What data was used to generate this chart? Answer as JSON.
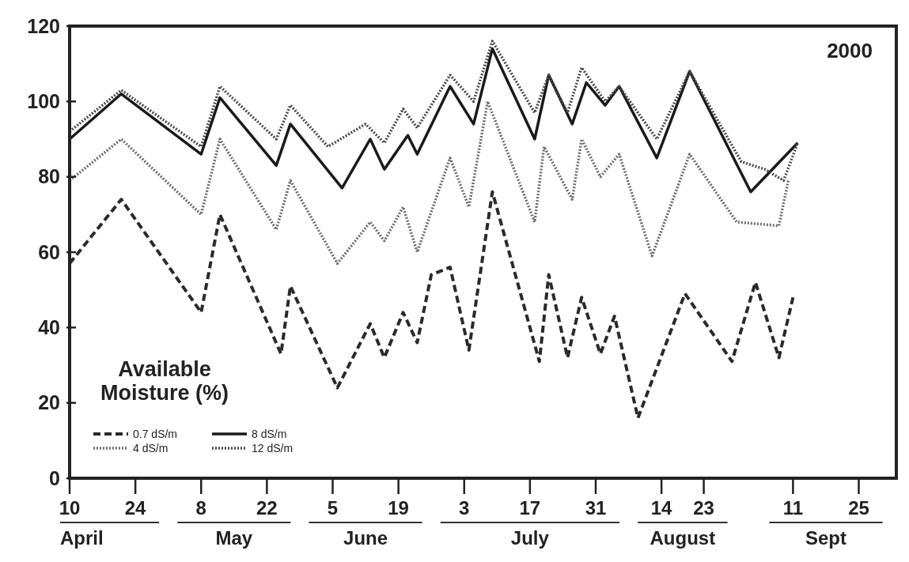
{
  "chart_data": {
    "type": "line",
    "ylabel": "Available Moisture (%)",
    "xlim": [
      "--04-10",
      "--10-03"
    ],
    "ylim": [
      0,
      120
    ],
    "yticks": [
      0,
      20,
      40,
      60,
      80,
      100,
      120
    ],
    "xticks": [
      {
        "value": "--04-10",
        "label": "10"
      },
      {
        "value": "--04-24",
        "label": "24"
      },
      {
        "value": "--05-08",
        "label": "8"
      },
      {
        "value": "--05-22",
        "label": "22"
      },
      {
        "value": "--06-05",
        "label": "5"
      },
      {
        "value": "--06-19",
        "label": "19"
      },
      {
        "value": "--07-03",
        "label": "3"
      },
      {
        "value": "--07-17",
        "label": "17"
      },
      {
        "value": "--07-31",
        "label": "31"
      },
      {
        "value": "--08-14",
        "label": "14"
      },
      {
        "value": "--08-23",
        "label": "23"
      },
      {
        "value": "--09-11",
        "label": "11"
      },
      {
        "value": "--09-25",
        "label": "25"
      }
    ],
    "annotations": [
      "2000",
      "April",
      "May",
      "June",
      "July",
      "August",
      "Sept"
    ],
    "grid": false,
    "legend": "bottom left",
    "marker": "none",
    "series": [
      {
        "name": "0.7 dS/m",
        "color": "#2a2a2a",
        "line_style": "dashed",
        "x": [
          "--04-10",
          "--04-21",
          "--05-08",
          "--05-12",
          "--05-25",
          "--05-27",
          "--06-06",
          "--06-13",
          "--06-16",
          "--06-20",
          "--06-23",
          "--06-26",
          "--06-30",
          "--07-04",
          "--07-09",
          "--07-19",
          "--07-21",
          "--07-25",
          "--07-28",
          "--08-01",
          "--08-04",
          "--08-09",
          "--08-19",
          "--08-29",
          "--09-03",
          "--09-08",
          "--09-11"
        ],
        "values": [
          57,
          74,
          44,
          70,
          33,
          51,
          24,
          41,
          32,
          44,
          36,
          54,
          56,
          34,
          76,
          31,
          54,
          32,
          48,
          33,
          43,
          16,
          49,
          31,
          52,
          32,
          48
        ]
      },
      {
        "name": "8 dS/m",
        "color": "#1a1a1a",
        "line_style": "solid",
        "x": [
          "--04-10",
          "--04-21",
          "--05-08",
          "--05-12",
          "--05-24",
          "--05-27",
          "--06-07",
          "--06-13",
          "--06-16",
          "--06-21",
          "--06-23",
          "--06-30",
          "--07-05",
          "--07-09",
          "--07-18",
          "--07-21",
          "--07-26",
          "--07-29",
          "--08-02",
          "--08-05",
          "--08-13",
          "--08-20",
          "--09-02",
          "--09-12"
        ],
        "values": [
          90,
          102,
          86,
          101,
          83,
          94,
          77,
          90,
          82,
          91,
          86,
          104,
          94,
          114,
          90,
          107,
          94,
          105,
          99,
          104,
          85,
          108,
          76,
          89
        ]
      },
      {
        "name": "4 dS/m",
        "color": "#6e6e6e",
        "line_style": "dotted",
        "x": [
          "--04-10",
          "--04-21",
          "--05-08",
          "--05-12",
          "--05-24",
          "--05-27",
          "--06-06",
          "--06-13",
          "--06-16",
          "--06-20",
          "--06-23",
          "--06-30",
          "--07-04",
          "--07-08",
          "--07-18",
          "--07-20",
          "--07-26",
          "--07-28",
          "--08-01",
          "--08-05",
          "--08-12",
          "--08-20",
          "--08-30",
          "--09-08",
          "--09-10"
        ],
        "values": [
          79,
          90,
          70,
          90,
          66,
          79,
          57,
          68,
          63,
          72,
          60,
          85,
          72,
          100,
          68,
          88,
          74,
          90,
          80,
          86,
          59,
          86,
          68,
          67,
          79
        ]
      },
      {
        "name": "12 dS/m",
        "color": "#4a4a4a",
        "line_style": "dotted",
        "x": [
          "--04-10",
          "--04-21",
          "--05-08",
          "--05-12",
          "--05-24",
          "--05-27",
          "--06-04",
          "--06-12",
          "--06-16",
          "--06-20",
          "--06-23",
          "--06-30",
          "--07-05",
          "--07-09",
          "--07-18",
          "--07-21",
          "--07-25",
          "--07-28",
          "--08-02",
          "--08-05",
          "--08-13",
          "--08-20",
          "--08-31",
          "--09-05",
          "--09-09",
          "--09-12"
        ],
        "values": [
          92,
          103,
          88,
          104,
          90,
          99,
          88,
          94,
          89,
          98,
          93,
          107,
          100,
          116,
          97,
          107,
          97,
          109,
          100,
          104,
          90,
          108,
          84,
          82,
          79,
          89
        ]
      }
    ]
  }
}
